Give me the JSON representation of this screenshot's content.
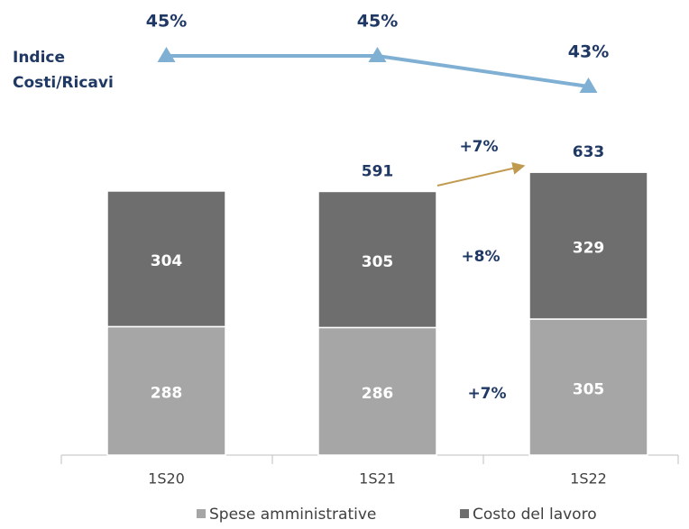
{
  "chart_data": {
    "type": "bar",
    "stacked": true,
    "categories": [
      "1S20",
      "1S21",
      "1S22"
    ],
    "series": [
      {
        "name": "Spese amministrative",
        "color": "#a6a6a6",
        "values": [
          288,
          286,
          305
        ]
      },
      {
        "name": "Costo del lavoro",
        "color": "#6e6e6e",
        "values": [
          304,
          305,
          329
        ]
      }
    ],
    "totals": [
      null,
      591,
      633
    ],
    "line": {
      "type": "line",
      "name": "Indice Costi/Ricavi",
      "color": "#7fb0d4",
      "values": [
        45,
        45,
        43
      ],
      "value_labels": [
        "45%",
        "45%",
        "43%"
      ]
    },
    "annotations": [
      "+7%",
      "+8%",
      "+7%"
    ],
    "legend": "bottom"
  }
}
